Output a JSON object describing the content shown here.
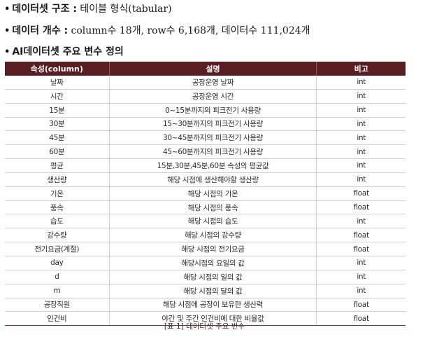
{
  "intro": {
    "line1": {
      "bullet": "•",
      "key": "데이터셋 구조 :",
      "value": " 테이블 형식(tabular)"
    },
    "line2": {
      "bullet": "•",
      "key": "데이터 개수 :",
      "value": " column수 18개, row수 6,168개, 데이터수 111,024개"
    },
    "line3": {
      "bullet": "•",
      "key": "AI데이터셋 주요 변수 정의",
      "value": ""
    }
  },
  "table": {
    "headers": [
      "속성(column)",
      "설명",
      "비고"
    ],
    "rows": [
      [
        "날짜",
        "공장운영 날짜",
        "int"
      ],
      [
        "시간",
        "공장운영 시간",
        "int"
      ],
      [
        "15분",
        "0~15분까지의 피크전기 사용량",
        "int"
      ],
      [
        "30분",
        "15~30분까지의 피크전기 사용량",
        "int"
      ],
      [
        "45분",
        "30~45분까지의 피크전기 사용량",
        "int"
      ],
      [
        "60분",
        "45~60분까지의 피크전기 사용량",
        "int"
      ],
      [
        "평균",
        "15분,30분,45분,60분 속성의 평균값",
        "int"
      ],
      [
        "생산량",
        "해당 시점에 생산해야할 생산량",
        "int"
      ],
      [
        "기온",
        "해당 시점의 기온",
        "float"
      ],
      [
        "풍속",
        "해당 시점의 풍속",
        "float"
      ],
      [
        "습도",
        "해당 시점의 습도",
        "int"
      ],
      [
        "강수량",
        "해당 시점의 강수량",
        "float"
      ],
      [
        "전기요금(계절)",
        "해당 시점의 전기요금",
        "float"
      ],
      [
        "day",
        "해당시점의 요일의 값",
        "int"
      ],
      [
        "d",
        "해당 시점의 일의 값",
        "int"
      ],
      [
        "m",
        "해당 시점의 달의 값",
        "int"
      ],
      [
        "공장직원",
        "해당 시점에 공장이 보유한 생산력",
        "float"
      ],
      [
        "인건비",
        "야간 및 주간 인건비에 대한 비율값",
        "float"
      ]
    ]
  },
  "caption": "[표 1] 데이터셋 주요 변수",
  "colors": {
    "header_bg": "#5a1e22",
    "header_text": "#ffffff"
  }
}
